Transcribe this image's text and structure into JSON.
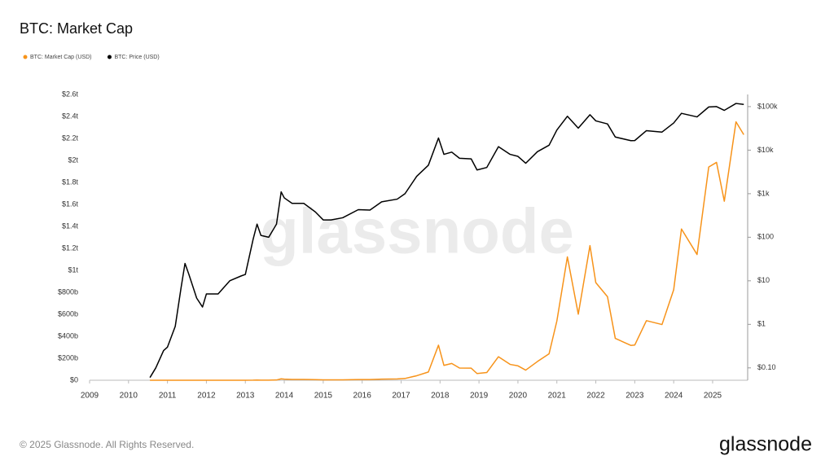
{
  "chart_data": {
    "type": "line",
    "title": "BTC: Market Cap",
    "x": [
      2010.55,
      2010.7,
      2010.9,
      2011.0,
      2011.2,
      2011.35,
      2011.45,
      2011.55,
      2011.75,
      2011.9,
      2012.0,
      2012.3,
      2012.6,
      2012.9,
      2013.0,
      2013.2,
      2013.3,
      2013.4,
      2013.6,
      2013.8,
      2013.92,
      2014.0,
      2014.2,
      2014.5,
      2014.8,
      2015.0,
      2015.2,
      2015.5,
      2015.9,
      2016.2,
      2016.5,
      2016.9,
      2017.1,
      2017.4,
      2017.7,
      2017.96,
      2018.1,
      2018.3,
      2018.5,
      2018.8,
      2018.95,
      2019.2,
      2019.5,
      2019.8,
      2020.0,
      2020.2,
      2020.5,
      2020.8,
      2021.0,
      2021.27,
      2021.55,
      2021.85,
      2022.0,
      2022.3,
      2022.5,
      2022.9,
      2023.0,
      2023.3,
      2023.7,
      2024.0,
      2024.2,
      2024.6,
      2024.9,
      2025.1,
      2025.3,
      2025.6,
      2025.8
    ],
    "series": [
      {
        "name": "BTC: Market Cap (USD)",
        "color": "#f7931a",
        "values": [
          0.0002,
          0.0004,
          0.0012,
          0.0015,
          0.005,
          0.043,
          0.16,
          0.094,
          0.029,
          0.019,
          0.04,
          0.044,
          0.096,
          0.134,
          0.15,
          0.98,
          2.2,
          1.2,
          1.15,
          2.4,
          13.2,
          9.8,
          7.5,
          7.7,
          5.1,
          3.4,
          3.5,
          4.0,
          6.4,
          6.4,
          10.1,
          12,
          16.2,
          41,
          75,
          319,
          135,
          153,
          111,
          110,
          61,
          70,
          214,
          144,
          131,
          92,
          170,
          241,
          539,
          1122,
          601,
          1225,
          888,
          760,
          381,
          317,
          320,
          542,
          507,
          823,
          1376,
          1144,
          1940,
          1982,
          1629,
          2351,
          2234
        ]
      },
      {
        "name": "BTC: Price (USD)",
        "color": "#000000",
        "axis": "y2",
        "values": [
          0.06,
          0.1,
          0.25,
          0.3,
          0.9,
          7,
          25,
          14,
          4,
          2.5,
          5,
          5,
          10,
          13,
          14,
          90,
          200,
          110,
          100,
          200,
          1100,
          800,
          600,
          600,
          380,
          250,
          250,
          280,
          430,
          420,
          650,
          750,
          1000,
          2500,
          4500,
          19000,
          8000,
          9000,
          6500,
          6300,
          3500,
          4000,
          12000,
          8000,
          7200,
          5000,
          9200,
          13000,
          29000,
          60000,
          32000,
          65000,
          47000,
          40000,
          20000,
          16500,
          16600,
          28000,
          26000,
          42000,
          70000,
          58000,
          98000,
          100000,
          82000,
          118000,
          112000
        ]
      }
    ],
    "xlim": [
      2009,
      2025.9
    ],
    "xticks": [
      2009,
      2010,
      2011,
      2012,
      2013,
      2014,
      2015,
      2016,
      2017,
      2018,
      2019,
      2020,
      2021,
      2022,
      2023,
      2024,
      2025
    ],
    "ylim": [
      0,
      2600
    ],
    "yticks": [
      {
        "value": 0,
        "label": "$0"
      },
      {
        "value": 200,
        "label": "$200b"
      },
      {
        "value": 400,
        "label": "$400b"
      },
      {
        "value": 600,
        "label": "$600b"
      },
      {
        "value": 800,
        "label": "$800b"
      },
      {
        "value": 1000,
        "label": "$1t"
      },
      {
        "value": 1200,
        "label": "$1.2t"
      },
      {
        "value": 1400,
        "label": "$1.4t"
      },
      {
        "value": 1600,
        "label": "$1.6t"
      },
      {
        "value": 1800,
        "label": "$1.8t"
      },
      {
        "value": 2000,
        "label": "$2t"
      },
      {
        "value": 2200,
        "label": "$2.2t"
      },
      {
        "value": 2400,
        "label": "$2.4t"
      },
      {
        "value": 2600,
        "label": "$2.6t"
      }
    ],
    "y2lim": [
      0.052,
      190000
    ],
    "y2_log": true,
    "y2ticks": [
      {
        "value": 0.1,
        "label": "$0.10"
      },
      {
        "value": 1,
        "label": "$1"
      },
      {
        "value": 10,
        "label": "$10"
      },
      {
        "value": 100,
        "label": "$100"
      },
      {
        "value": 1000,
        "label": "$1k"
      },
      {
        "value": 10000,
        "label": "$10k"
      },
      {
        "value": 100000,
        "label": "$100k"
      }
    ],
    "legend": "top-left",
    "grid": false,
    "watermark": "glassnode"
  },
  "footer": {
    "copyright": "© 2025 Glassnode. All Rights Reserved.",
    "logo": "glassnode"
  }
}
